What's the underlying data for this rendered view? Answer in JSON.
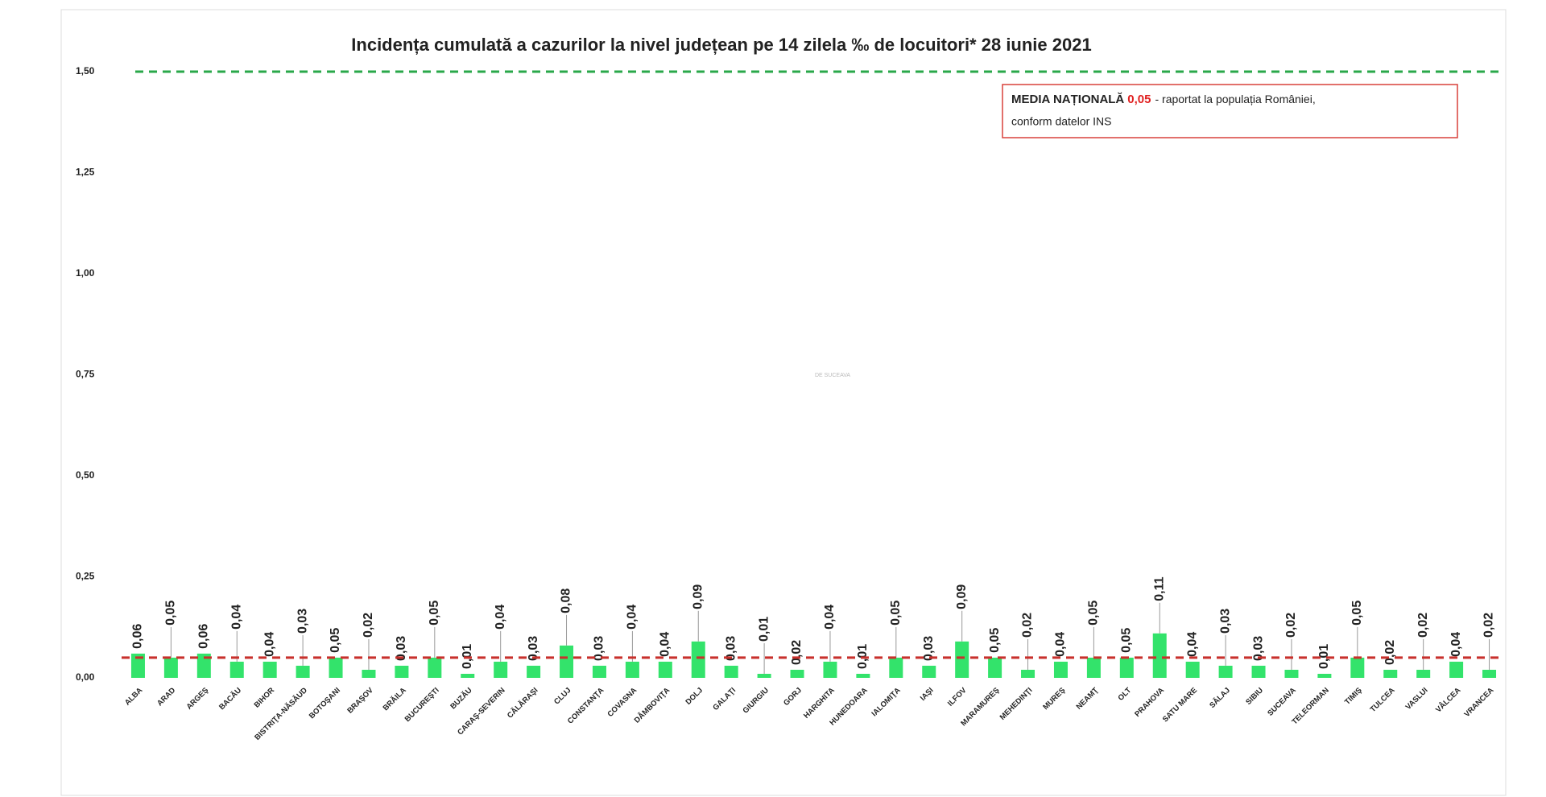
{
  "chart_data": {
    "type": "bar",
    "title": "Incidența cumulată a cazurilor la nivel județean pe 14 zilela ‰ de locuitori*  28 iunie 2021",
    "categories": [
      "ALBA",
      "ARAD",
      "ARGEŞ",
      "BACĂU",
      "BIHOR",
      "BISTRIŢA-NĂSĂUD",
      "BOTOŞANI",
      "BRAŞOV",
      "BRĂILA",
      "BUCUREŞTI",
      "BUZĂU",
      "CARAŞ-SEVERIN",
      "CĂLĂRAŞI",
      "CLUJ",
      "CONSTANŢA",
      "COVASNA",
      "DÂMBOVIŢA",
      "DOLJ",
      "GALAŢI",
      "GIURGIU",
      "GORJ",
      "HARGHITA",
      "HUNEDOARA",
      "IALOMIŢA",
      "IAŞI",
      "ILFOV",
      "MARAMUREŞ",
      "MEHEDINŢI",
      "MUREŞ",
      "NEAMŢ",
      "OLT",
      "PRAHOVA",
      "SATU MARE",
      "SĂLAJ",
      "SIBIU",
      "SUCEAVA",
      "TELEORMAN",
      "TIMIŞ",
      "TULCEA",
      "VASLUI",
      "VÂLCEA",
      "VRANCEA"
    ],
    "values": [
      0.06,
      0.05,
      0.06,
      0.04,
      0.04,
      0.03,
      0.05,
      0.02,
      0.03,
      0.05,
      0.01,
      0.04,
      0.03,
      0.08,
      0.03,
      0.04,
      0.04,
      0.09,
      0.03,
      0.01,
      0.02,
      0.04,
      0.01,
      0.05,
      0.03,
      0.09,
      0.05,
      0.02,
      0.04,
      0.05,
      0.05,
      0.11,
      0.04,
      0.03,
      0.03,
      0.02,
      0.01,
      0.05,
      0.02,
      0.02,
      0.04,
      0.02
    ],
    "value_labels": [
      "0,06",
      "0,05",
      "0,06",
      "0,04",
      "0,04",
      "0,03",
      "0,05",
      "0,02",
      "0,03",
      "0,05",
      "0,01",
      "0,04",
      "0,03",
      "0,08",
      "0,03",
      "0,04",
      "0,04",
      "0,09",
      "0,03",
      "0,01",
      "0,02",
      "0,04",
      "0,01",
      "0,05",
      "0,03",
      "0,09",
      "0,05",
      "0,02",
      "0,04",
      "0,05",
      "0,05",
      "0,11",
      "0,04",
      "0,03",
      "0,03",
      "0,02",
      "0,01",
      "0,05",
      "0,02",
      "0,02",
      "0,04",
      "0,02"
    ],
    "color": "#33e36b",
    "ylim": [
      0,
      1.5
    ],
    "yticks": [
      {
        "value": 0,
        "label": "0,00"
      },
      {
        "value": 0.25,
        "label": "0,25"
      },
      {
        "value": 0.5,
        "label": "0,50"
      },
      {
        "value": 0.75,
        "label": "0,75"
      },
      {
        "value": 1,
        "label": "1,00"
      },
      {
        "value": 1.25,
        "label": "1,25"
      },
      {
        "value": 1.5,
        "label": "1,50"
      }
    ],
    "grid": false,
    "reference_lines": [
      {
        "value": 1.5,
        "color": "#2aa84a"
      },
      {
        "value": 0.05,
        "color": "#c8302c"
      }
    ],
    "annotation": {
      "label": "MEDIA NAȚIONALĂ",
      "value_label": "0,05",
      "text_line1": "- raportat la populația României,",
      "text_line2": "conform datelor INS"
    },
    "watermark": "DE SUCEAVA"
  }
}
